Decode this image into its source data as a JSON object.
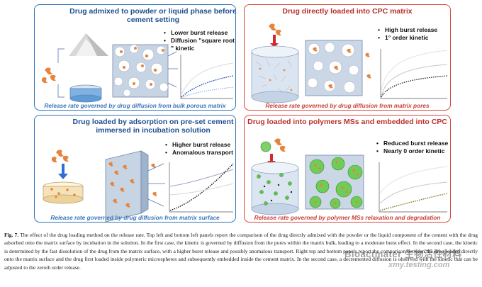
{
  "panels": {
    "top_left": {
      "title": "Drug admixed to powder or liquid phase before cement setting",
      "bullets": [
        "Lower burst release",
        "Diffusion \"square root \" kinetic"
      ],
      "caption": "Release rate governed by drug diffusion from bulk porous matrix"
    },
    "top_right": {
      "title": "Drug directly loaded into CPC matrix",
      "bullets": [
        "High burst release",
        "1° order kinetic"
      ],
      "caption": "Release rate governed by drug diffusion from matrix pores"
    },
    "bottom_left": {
      "title": "Drug loaded by adsorption on pre-set cement immersed in incubation solution",
      "bullets": [
        "Higher burst release",
        "Anomalous transport"
      ],
      "caption": "Release rate governed by drug diffusion from matrix surface"
    },
    "bottom_right": {
      "title": "Drug loaded into polymers MSs and embedded into CPC",
      "bullets": [
        "Reduced burst release",
        "Nearly 0 order kinetic"
      ],
      "caption": "Release rate governed by polymer MSs relaxation and degradation"
    }
  },
  "figure_caption": {
    "label": "Fig. 7.",
    "text": "The effect of the drug loading method on the release rate. Top left and bottom left panels report the comparison of the drug directly admixed with the powder or the liquid component of the cement with the drug adsorbed onto the matrix surface by incubation in the solution. In the first case, the kinetic is governed by diffusion from the pores within the matrix bulk, leading to a moderate burst effect. In the second case, the kinetic is determined by the fast dissolution of the drug from the matrix surface, with a higher burst release and possibly anomalous transport. Right top and bottom panels report the comparison between the drug loaded directly onto the matrix surface and the drug first loaded inside polymeric microspheres and subsequently embedded inside the cement matrix. In the second case, a decremented diffusion is observed with the kinetic that can be adjusted to the zeroth order release."
  },
  "watermark": {
    "line1": "Bioactmater 生物活性材料",
    "line2": "xmy.testing.com"
  },
  "colors": {
    "blue_border": "#2e72b8",
    "red_border": "#d9453b",
    "drug": "#e8833a",
    "curve_blue": "#1f4fb0",
    "curve_black": "#1a1a1a",
    "curve_olive": "#8a7a28",
    "cement": "#b9c7d8"
  }
}
